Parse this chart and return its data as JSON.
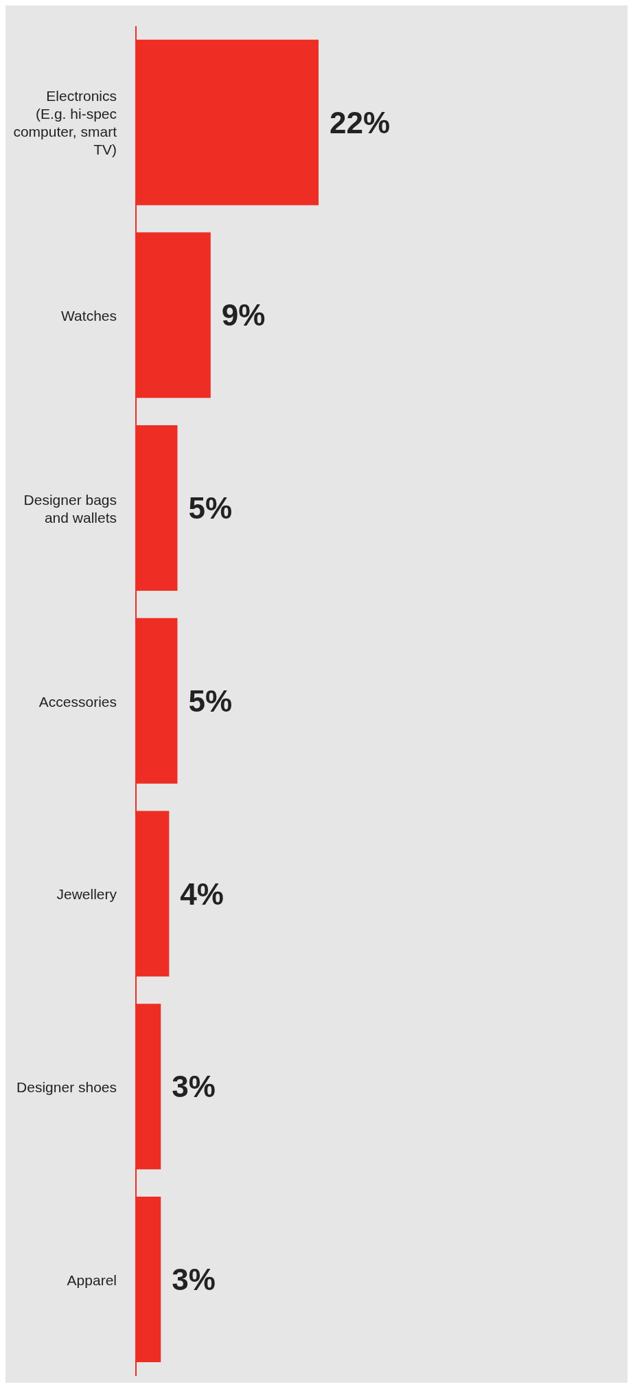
{
  "chart_data": {
    "type": "bar",
    "orientation": "horizontal",
    "categories": [
      "Electronics (E.g. hi-spec computer, smart TV)",
      "Watches",
      "Designer bags and wallets",
      "Accessories",
      "Jewellery",
      "Designer shoes",
      "Apparel"
    ],
    "values": [
      22,
      9,
      5,
      5,
      4,
      3,
      3
    ],
    "value_labels": [
      "22%",
      "9%",
      "5%",
      "5%",
      "4%",
      "3%",
      "3%"
    ],
    "color": "#ee2e24",
    "grid": false,
    "legend": false
  }
}
